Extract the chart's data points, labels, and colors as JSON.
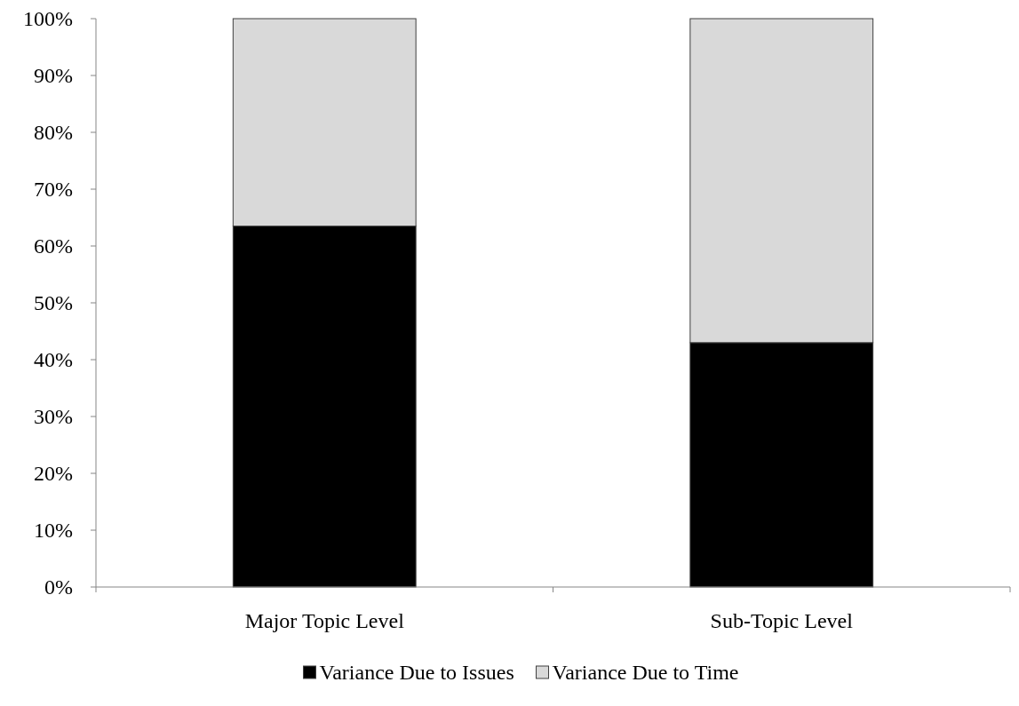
{
  "chart_data": {
    "type": "bar",
    "stacked": true,
    "categories": [
      "Major Topic Level",
      "Sub-Topic Level"
    ],
    "series": [
      {
        "name": "Variance Due to Issues",
        "color": "#000000",
        "values": [
          63.5,
          43
        ]
      },
      {
        "name": "Variance Due to Time",
        "color": "#d9d9d9",
        "values": [
          36.5,
          57
        ]
      }
    ],
    "ylim": [
      0,
      100
    ],
    "yticks": [
      {
        "value": 0,
        "label": "0%"
      },
      {
        "value": 10,
        "label": "10%"
      },
      {
        "value": 20,
        "label": "20%"
      },
      {
        "value": 30,
        "label": "30%"
      },
      {
        "value": 40,
        "label": "40%"
      },
      {
        "value": 50,
        "label": "50%"
      },
      {
        "value": 60,
        "label": "60%"
      },
      {
        "value": 70,
        "label": "70%"
      },
      {
        "value": 80,
        "label": "80%"
      },
      {
        "value": 90,
        "label": "90%"
      },
      {
        "value": 100,
        "label": "100%"
      }
    ],
    "grid": false,
    "legend": "bottom"
  }
}
